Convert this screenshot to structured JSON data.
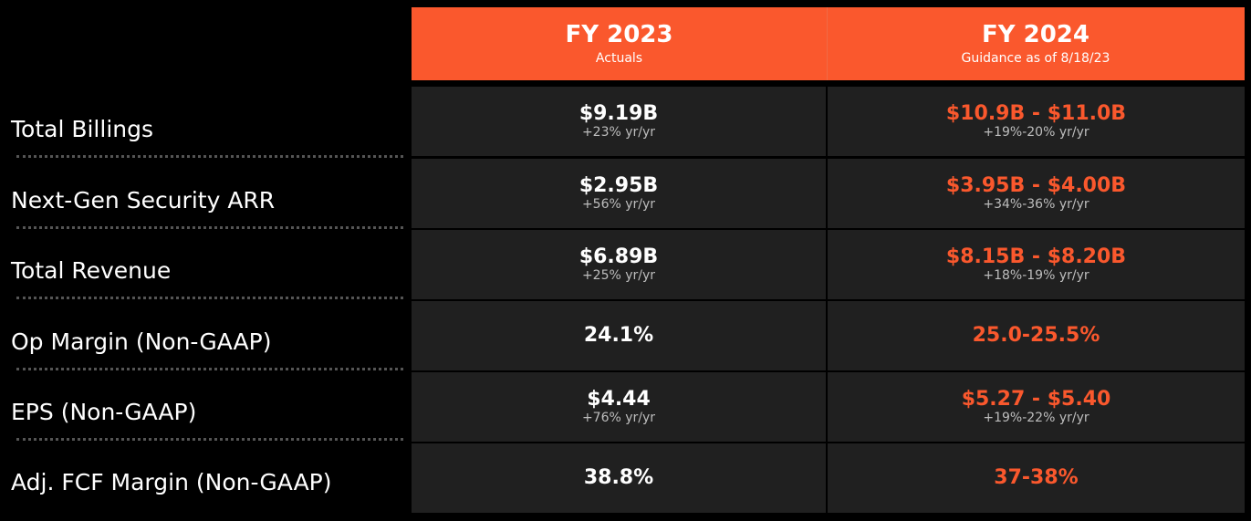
{
  "header": {
    "col1_title": "FY 2023",
    "col1_sub": "Actuals",
    "col2_title": "FY 2024",
    "col2_sub": "Guidance as of 8/18/23"
  },
  "rows": [
    {
      "label": "Total Billings",
      "fy2023_value": "$9.19B",
      "fy2023_growth": "+23% yr/yr",
      "fy2024_value": "$10.9B - $11.0B",
      "fy2024_growth": "+19%-20% yr/yr"
    },
    {
      "label": "Next-Gen Security ARR",
      "fy2023_value": "$2.95B",
      "fy2023_growth": "+56% yr/yr",
      "fy2024_value": "$3.95B - $4.00B",
      "fy2024_growth": "+34%-36% yr/yr"
    },
    {
      "label": "Total Revenue",
      "fy2023_value": "$6.89B",
      "fy2023_growth": "+25% yr/yr",
      "fy2024_value": "$8.15B - $8.20B",
      "fy2024_growth": "+18%-19% yr/yr"
    },
    {
      "label": "Op Margin (Non-GAAP)",
      "fy2023_value": "24.1%",
      "fy2024_value": "25.0-25.5%"
    },
    {
      "label": "EPS (Non-GAAP)",
      "fy2023_value": "$4.44",
      "fy2023_growth": "+76% yr/yr",
      "fy2024_value": "$5.27 - $5.40",
      "fy2024_growth": "+19%-22% yr/yr"
    },
    {
      "label": "Adj. FCF Margin (Non-GAAP)",
      "fy2023_value": "38.8%",
      "fy2024_value": "37-38%"
    }
  ],
  "colors": {
    "accent": "#fa582d",
    "cell_background": "#202020",
    "page_background": "#000000",
    "growth_text": "#bdbdbd"
  }
}
